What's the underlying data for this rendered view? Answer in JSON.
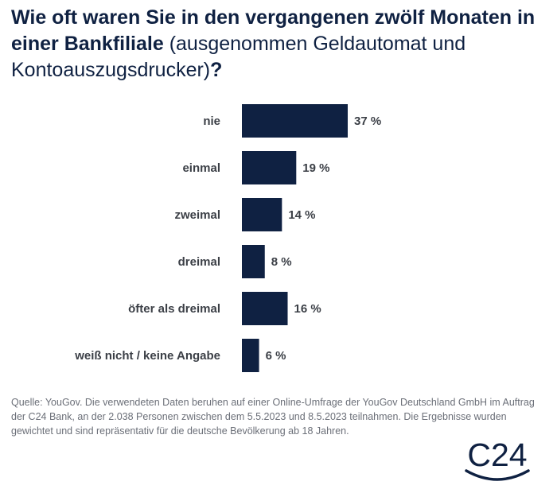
{
  "title": {
    "bold": "Wie oft waren Sie in den vergangenen zwölf Monaten in einer Bankfiliale",
    "normal": " (ausgenommen Geldautomat und Kontoauszugsdrucker)",
    "end": "?"
  },
  "chart_data": {
    "type": "bar",
    "orientation": "horizontal",
    "categories": [
      "nie",
      "einmal",
      "zweimal",
      "dreimal",
      "öfter als dreimal",
      "weiß nicht / keine Angabe"
    ],
    "values": [
      37,
      19,
      14,
      8,
      16,
      6
    ],
    "value_labels": [
      "37 %",
      "19 %",
      "14 %",
      "8 %",
      "16 %",
      "6 %"
    ],
    "xlim": [
      0,
      37
    ],
    "bar_color": "#0f2142",
    "grid": false,
    "legend": "none"
  },
  "source": "Quelle: YouGov. Die verwendeten Daten beruhen auf einer Online-Umfrage der YouGov Deutschland GmbH im Auftrag der C24 Bank, an der 2.038 Personen zwischen dem 5.5.2023 und 8.5.2023 teilnahmen. Die Ergebnisse wurden gewichtet und sind repräsentativ für die deutsche Bevölkerung ab 18 Jahren.",
  "logo": {
    "text": "C24",
    "color": "#0f2142"
  }
}
